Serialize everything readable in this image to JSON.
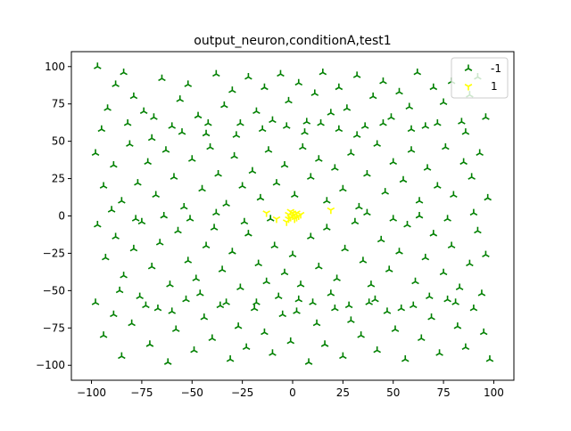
{
  "chart_data": {
    "type": "scatter",
    "title": "output_neuron,conditionA,test1",
    "xlabel": "",
    "ylabel": "",
    "xlim": [
      -110,
      110
    ],
    "ylim": [
      -110,
      110
    ],
    "xticks": [
      -100,
      -75,
      -50,
      -25,
      0,
      25,
      50,
      75,
      100
    ],
    "yticks": [
      -100,
      -75,
      -50,
      -25,
      0,
      25,
      50,
      75,
      100
    ],
    "xtick_labels": [
      "−100",
      "−75",
      "−50",
      "−25",
      "0",
      "25",
      "50",
      "75",
      "100"
    ],
    "ytick_labels": [
      "−100",
      "−75",
      "−50",
      "−25",
      "0",
      "25",
      "50",
      "75",
      "100"
    ],
    "grid": false,
    "legend_position": "top-right",
    "series": [
      {
        "name": "-1",
        "color": "#008000",
        "marker": "tri-up",
        "points": [
          [
            -97,
            100
          ],
          [
            -92,
            72
          ],
          [
            -88,
            88
          ],
          [
            -84,
            96
          ],
          [
            -79,
            80
          ],
          [
            -74,
            70
          ],
          [
            -70,
            52
          ],
          [
            -65,
            92
          ],
          [
            -60,
            60
          ],
          [
            -56,
            78
          ],
          [
            -52,
            88
          ],
          [
            -47,
            67
          ],
          [
            -43,
            55
          ],
          [
            -38,
            95
          ],
          [
            -34,
            74
          ],
          [
            -30,
            84
          ],
          [
            -26,
            62
          ],
          [
            -22,
            93
          ],
          [
            -18,
            70
          ],
          [
            -14,
            86
          ],
          [
            -10,
            64
          ],
          [
            -6,
            95
          ],
          [
            -2,
            77
          ],
          [
            3,
            89
          ],
          [
            7,
            63
          ],
          [
            11,
            82
          ],
          [
            15,
            96
          ],
          [
            19,
            69
          ],
          [
            23,
            86
          ],
          [
            27,
            72
          ],
          [
            32,
            94
          ],
          [
            36,
            60
          ],
          [
            40,
            80
          ],
          [
            45,
            90
          ],
          [
            49,
            66
          ],
          [
            53,
            83
          ],
          [
            58,
            73
          ],
          [
            62,
            96
          ],
          [
            66,
            60
          ],
          [
            70,
            86
          ],
          [
            75,
            76
          ],
          [
            79,
            90
          ],
          [
            84,
            63
          ],
          [
            88,
            81
          ],
          [
            92,
            93
          ],
          [
            96,
            66
          ],
          [
            -98,
            42
          ],
          [
            -94,
            20
          ],
          [
            -89,
            34
          ],
          [
            -85,
            10
          ],
          [
            -81,
            48
          ],
          [
            -77,
            22
          ],
          [
            -72,
            36
          ],
          [
            -68,
            14
          ],
          [
            -63,
            44
          ],
          [
            -59,
            26
          ],
          [
            -54,
            6
          ],
          [
            -50,
            38
          ],
          [
            -45,
            18
          ],
          [
            -41,
            46
          ],
          [
            -37,
            28
          ],
          [
            -33,
            8
          ],
          [
            -29,
            40
          ],
          [
            -25,
            20
          ],
          [
            -20,
            30
          ],
          [
            -16,
            12
          ],
          [
            -12,
            44
          ],
          [
            -8,
            22
          ],
          [
            -4,
            34
          ],
          [
            1,
            14
          ],
          [
            5,
            46
          ],
          [
            9,
            26
          ],
          [
            13,
            38
          ],
          [
            17,
            10
          ],
          [
            21,
            32
          ],
          [
            25,
            18
          ],
          [
            29,
            42
          ],
          [
            33,
            6
          ],
          [
            37,
            28
          ],
          [
            42,
            48
          ],
          [
            46,
            16
          ],
          [
            50,
            36
          ],
          [
            55,
            24
          ],
          [
            59,
            44
          ],
          [
            63,
            10
          ],
          [
            67,
            32
          ],
          [
            72,
            20
          ],
          [
            76,
            46
          ],
          [
            80,
            14
          ],
          [
            85,
            36
          ],
          [
            89,
            26
          ],
          [
            93,
            42
          ],
          [
            97,
            12
          ],
          [
            -97,
            -6
          ],
          [
            -93,
            -28
          ],
          [
            -88,
            -14
          ],
          [
            -84,
            -40
          ],
          [
            -79,
            -22
          ],
          [
            -75,
            -4
          ],
          [
            -70,
            -34
          ],
          [
            -66,
            -18
          ],
          [
            -61,
            -46
          ],
          [
            -57,
            -10
          ],
          [
            -52,
            -30
          ],
          [
            -48,
            -42
          ],
          [
            -43,
            -20
          ],
          [
            -39,
            -8
          ],
          [
            -35,
            -36
          ],
          [
            -30,
            -24
          ],
          [
            -26,
            -48
          ],
          [
            -22,
            -12
          ],
          [
            -17,
            -32
          ],
          [
            -13,
            -44
          ],
          [
            -9,
            -20
          ],
          [
            -4,
            -38
          ],
          [
            0,
            -26
          ],
          [
            4,
            -46
          ],
          [
            9,
            -14
          ],
          [
            13,
            -34
          ],
          [
            17,
            -8
          ],
          [
            22,
            -42
          ],
          [
            26,
            -22
          ],
          [
            31,
            -4
          ],
          [
            35,
            -30
          ],
          [
            39,
            -46
          ],
          [
            44,
            -16
          ],
          [
            48,
            -36
          ],
          [
            53,
            -24
          ],
          [
            57,
            -6
          ],
          [
            61,
            -44
          ],
          [
            66,
            -28
          ],
          [
            70,
            -12
          ],
          [
            75,
            -38
          ],
          [
            79,
            -20
          ],
          [
            83,
            -48
          ],
          [
            88,
            -32
          ],
          [
            92,
            -10
          ],
          [
            96,
            -26
          ],
          [
            -98,
            -58
          ],
          [
            -94,
            -80
          ],
          [
            -89,
            -66
          ],
          [
            -85,
            -94
          ],
          [
            -80,
            -72
          ],
          [
            -76,
            -54
          ],
          [
            -71,
            -86
          ],
          [
            -67,
            -62
          ],
          [
            -62,
            -98
          ],
          [
            -58,
            -76
          ],
          [
            -53,
            -56
          ],
          [
            -49,
            -90
          ],
          [
            -44,
            -68
          ],
          [
            -40,
            -82
          ],
          [
            -36,
            -60
          ],
          [
            -31,
            -96
          ],
          [
            -27,
            -74
          ],
          [
            -23,
            -88
          ],
          [
            -18,
            -58
          ],
          [
            -14,
            -78
          ],
          [
            -10,
            -92
          ],
          [
            -5,
            -66
          ],
          [
            -1,
            -84
          ],
          [
            3,
            -56
          ],
          [
            8,
            -98
          ],
          [
            12,
            -72
          ],
          [
            16,
            -86
          ],
          [
            21,
            -62
          ],
          [
            25,
            -94
          ],
          [
            29,
            -70
          ],
          [
            34,
            -80
          ],
          [
            38,
            -58
          ],
          [
            42,
            -90
          ],
          [
            47,
            -64
          ],
          [
            51,
            -76
          ],
          [
            56,
            -96
          ],
          [
            60,
            -60
          ],
          [
            64,
            -82
          ],
          [
            69,
            -68
          ],
          [
            73,
            -92
          ],
          [
            77,
            -56
          ],
          [
            82,
            -74
          ],
          [
            86,
            -88
          ],
          [
            90,
            -62
          ],
          [
            95,
            -78
          ],
          [
            98,
            -96
          ],
          [
            -95,
            58
          ],
          [
            -90,
            4
          ],
          [
            -86,
            -50
          ],
          [
            -82,
            62
          ],
          [
            -78,
            -2
          ],
          [
            -73,
            -60
          ],
          [
            -69,
            66
          ],
          [
            -64,
            0
          ],
          [
            -60,
            -64
          ],
          [
            -55,
            56
          ],
          [
            -51,
            -2
          ],
          [
            -46,
            -52
          ],
          [
            -42,
            62
          ],
          [
            -38,
            2
          ],
          [
            -33,
            -58
          ],
          [
            -28,
            54
          ],
          [
            -24,
            -4
          ],
          [
            -19,
            -62
          ],
          [
            -15,
            58
          ],
          [
            -11,
            -2
          ],
          [
            -7,
            -54
          ],
          [
            -3,
            60
          ],
          [
            2,
            -64
          ],
          [
            6,
            56
          ],
          [
            10,
            -58
          ],
          [
            14,
            62
          ],
          [
            19,
            -52
          ],
          [
            23,
            58
          ],
          [
            28,
            -60
          ],
          [
            32,
            54
          ],
          [
            37,
            2
          ],
          [
            41,
            -56
          ],
          [
            45,
            62
          ],
          [
            50,
            -2
          ],
          [
            54,
            -62
          ],
          [
            59,
            58
          ],
          [
            63,
            0
          ],
          [
            68,
            -54
          ],
          [
            72,
            62
          ],
          [
            77,
            -2
          ],
          [
            81,
            -58
          ],
          [
            86,
            56
          ],
          [
            90,
            2
          ],
          [
            94,
            -52
          ]
        ]
      },
      {
        "name": "1",
        "color": "#ffff00",
        "marker": "tri-down",
        "points": [
          [
            -13,
            2
          ],
          [
            -8,
            -2
          ],
          [
            -3,
            -4
          ],
          [
            0,
            0
          ],
          [
            1,
            1
          ],
          [
            -1,
            -1
          ],
          [
            2,
            -1
          ],
          [
            -2,
            1
          ],
          [
            1,
            -2
          ],
          [
            0,
            2
          ],
          [
            3,
            0
          ],
          [
            -1,
            3
          ],
          [
            2,
            2
          ],
          [
            -2,
            -2
          ],
          [
            4,
            1
          ],
          [
            19,
            4
          ]
        ]
      }
    ]
  }
}
